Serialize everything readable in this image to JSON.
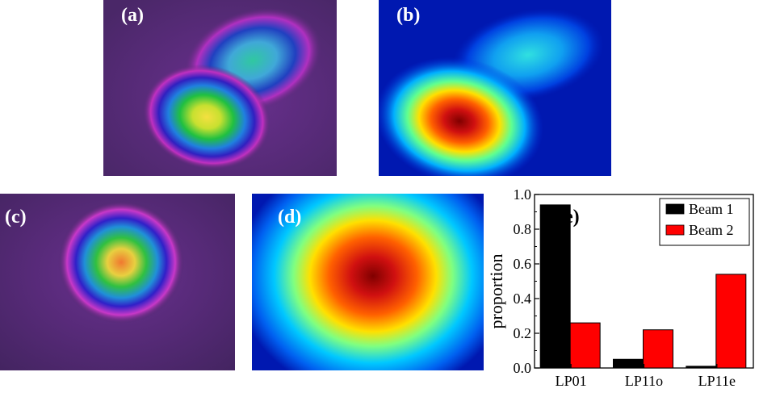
{
  "panels": {
    "a": {
      "label": "(a)"
    },
    "b": {
      "label": "(b)"
    },
    "c": {
      "label": "(c)"
    },
    "d": {
      "label": "(d)"
    }
  },
  "chart_data": {
    "type": "bar",
    "panel_label": "(e)",
    "categories": [
      "LP01",
      "LP11o",
      "LP11e"
    ],
    "series": [
      {
        "name": "Beam 1",
        "color": "#000000",
        "values": [
          0.94,
          0.05,
          0.01
        ]
      },
      {
        "name": "Beam 2",
        "color": "#ff0000",
        "values": [
          0.26,
          0.22,
          0.54
        ]
      }
    ],
    "xlabel": "",
    "ylabel": "proportion",
    "ylim": [
      0,
      1.0
    ],
    "yticks": [
      "0.0",
      "0.2",
      "0.4",
      "0.6",
      "0.8",
      "1.0"
    ],
    "grid": false,
    "legend_position": "top-right"
  }
}
